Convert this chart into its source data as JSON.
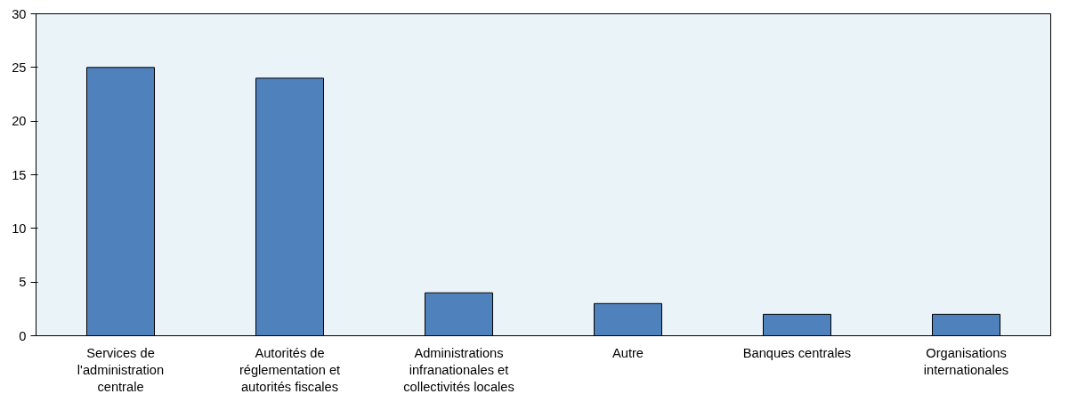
{
  "chart_data": {
    "type": "bar",
    "categories": [
      "Services de l'administration centrale",
      "Autorités de réglementation et autorités fiscales",
      "Administrations infranationales et collectivités locales",
      "Autre",
      "Banques centrales",
      "Organisations internationales"
    ],
    "values": [
      25,
      24,
      4,
      3,
      2,
      2
    ],
    "color": "#4f81bd",
    "ylim": [
      0,
      30
    ],
    "yticks": [
      0,
      5,
      10,
      15,
      20,
      25,
      30
    ],
    "grid": false
  }
}
